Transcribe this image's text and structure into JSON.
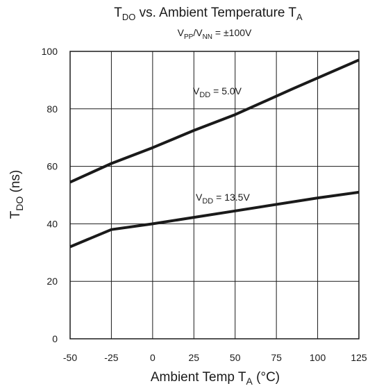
{
  "chart_data": {
    "type": "line",
    "title": {
      "main": "T",
      "sub": "DO",
      "rest": " vs. Ambient Temperature T",
      "sub2": "A"
    },
    "subtitle": {
      "v1": "V",
      "s1": "PP",
      "mid": "/V",
      "s2": "NN",
      "rest": " =  ±100V"
    },
    "xlabel": {
      "main": "Ambient Temp T",
      "sub": "A",
      "rest": " (°C)"
    },
    "ylabel": {
      "main": "T",
      "sub": "DO",
      "rest": " (ns)"
    },
    "xlim": [
      -50,
      125
    ],
    "ylim": [
      0,
      100
    ],
    "x_ticks": [
      -50,
      -25,
      0,
      25,
      50,
      75,
      100,
      125
    ],
    "y_ticks": [
      0,
      20,
      40,
      60,
      80,
      100
    ],
    "grid": true,
    "series": [
      {
        "name_parts": {
          "main": "V",
          "sub": "DD",
          "rest": " = 5.0V"
        },
        "x": [
          -50,
          -25,
          0,
          25,
          50,
          85,
          125
        ],
        "y": [
          54.5,
          61,
          66.5,
          72.5,
          78,
          87,
          97
        ]
      },
      {
        "name_parts": {
          "main": "V",
          "sub": "DD",
          "rest": " = 13.5V"
        },
        "x": [
          -50,
          -25,
          0,
          50,
          100,
          125
        ],
        "y": [
          32,
          38,
          40,
          44.5,
          49,
          51
        ]
      }
    ]
  }
}
